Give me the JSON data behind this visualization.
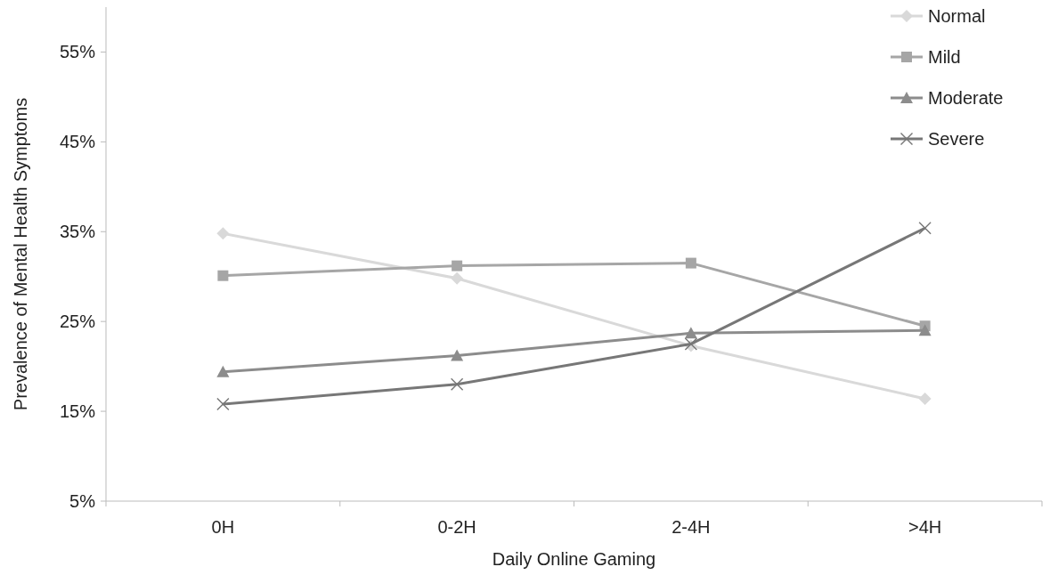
{
  "chart_data": {
    "type": "line",
    "xlabel": "Daily Online Gaming",
    "ylabel": "Prevalence of Mental Health Symptoms",
    "categories": [
      "0H",
      "0-2H",
      "2-4H",
      ">4H"
    ],
    "series": [
      {
        "name": "Normal",
        "color": "#d9d9d9",
        "marker": "diamond",
        "values": [
          34.8,
          29.8,
          22.3,
          16.4
        ]
      },
      {
        "name": "Mild",
        "color": "#a6a6a6",
        "marker": "square",
        "values": [
          30.1,
          31.2,
          31.5,
          24.5
        ]
      },
      {
        "name": "Moderate",
        "color": "#8c8c8c",
        "marker": "triangle",
        "values": [
          19.4,
          21.2,
          23.7,
          24.0
        ]
      },
      {
        "name": "Severe",
        "color": "#777777",
        "marker": "cross",
        "values": [
          15.8,
          18.0,
          22.5,
          35.4
        ]
      }
    ],
    "ylim": [
      5,
      60
    ],
    "yticks": [
      {
        "value": 5,
        "label": "5%"
      },
      {
        "value": 15,
        "label": "15%"
      },
      {
        "value": 25,
        "label": "25%"
      },
      {
        "value": 35,
        "label": "35%"
      },
      {
        "value": 45,
        "label": "45%"
      },
      {
        "value": 55,
        "label": "55%"
      }
    ],
    "grid": false,
    "legend": "top right",
    "line_style": "solid"
  }
}
